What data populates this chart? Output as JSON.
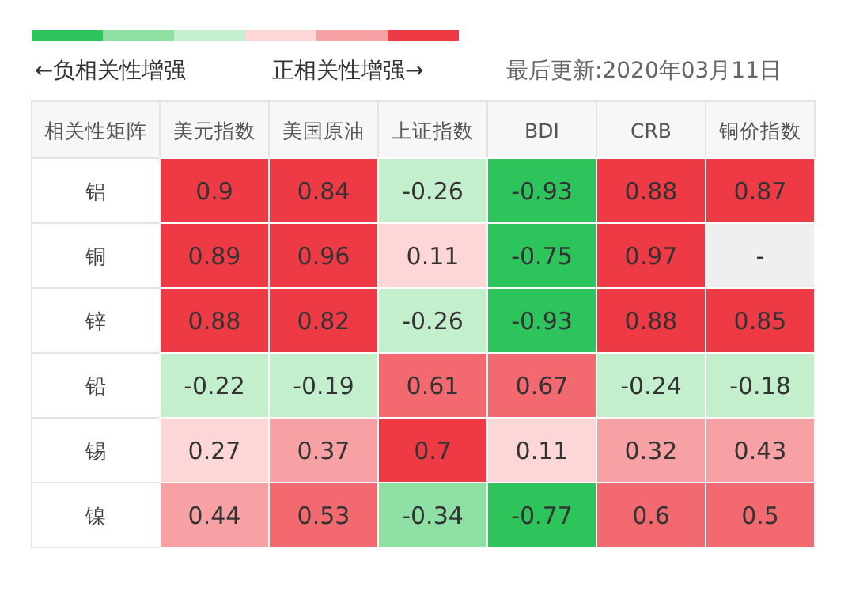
{
  "chart_data": {
    "type": "heatmap",
    "categories": [
      "美元指数",
      "美国原油",
      "上证指数",
      "BDI",
      "CRB",
      "铜价指数"
    ],
    "y_categories": [
      "铝",
      "铜",
      "锌",
      "铅",
      "锡",
      "镍"
    ],
    "cells": [
      [
        0.9,
        0.84,
        -0.26,
        -0.93,
        0.88,
        0.87
      ],
      [
        0.89,
        0.96,
        0.11,
        -0.75,
        0.97,
        null
      ],
      [
        0.88,
        0.82,
        -0.26,
        -0.93,
        0.88,
        0.85
      ],
      [
        -0.22,
        -0.19,
        0.61,
        0.67,
        -0.24,
        -0.18
      ],
      [
        0.27,
        0.37,
        0.7,
        0.11,
        0.32,
        0.43
      ],
      [
        0.44,
        0.53,
        -0.34,
        -0.77,
        0.6,
        0.5
      ]
    ],
    "cell_labels": [
      [
        "0.9",
        "0.84",
        "-0.26",
        "-0.93",
        "0.88",
        "0.87"
      ],
      [
        "0.89",
        "0.96",
        "0.11",
        "-0.75",
        "0.97",
        "-"
      ],
      [
        "0.88",
        "0.82",
        "-0.26",
        "-0.93",
        "0.88",
        "0.85"
      ],
      [
        "-0.22",
        "-0.19",
        "0.61",
        "0.67",
        "-0.24",
        "-0.18"
      ],
      [
        "0.27",
        "0.37",
        "0.7",
        "0.11",
        "0.32",
        "0.43"
      ],
      [
        "0.44",
        "0.53",
        "-0.34",
        "-0.77",
        "0.6",
        "0.5"
      ]
    ],
    "data_labels": true,
    "annotations": [
      "←负相关性增强",
      "正相关性增强→",
      "最后更新:2020年03月11日",
      "相关性矩阵"
    ]
  }
}
